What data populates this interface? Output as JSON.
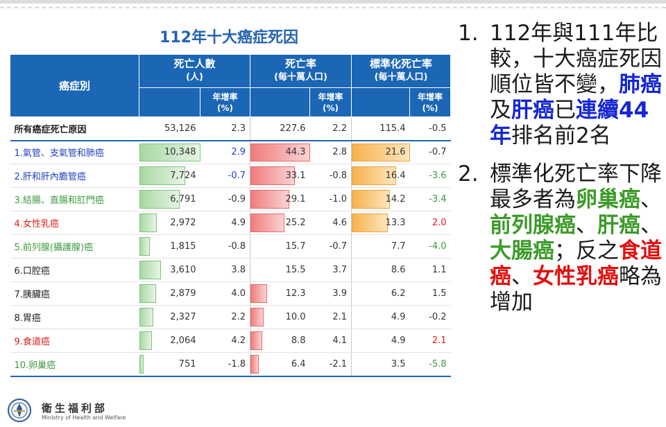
{
  "title": "112年十大癌症死因",
  "colors": {
    "header_bg": "#1b66b5",
    "green_bar": "#a8d8a3",
    "red_bar": "#f07c7c",
    "orange_bar": "#f6b24c"
  },
  "table": {
    "headers": {
      "category": "癌症別",
      "deaths": "死亡人數",
      "deaths_unit": "(人)",
      "rate": "死亡率",
      "rate_unit": "(每十萬人口)",
      "std_rate": "標準化死亡率",
      "std_rate_unit": "(每十萬人口)",
      "growth": "年增率",
      "growth_unit": "(%)"
    },
    "total_row": {
      "name": "所有癌症死亡原因",
      "deaths": "53,126",
      "deaths_g": "2.3",
      "rate": "227.6",
      "rate_g": "2.2",
      "std": "115.4",
      "std_g": "-0.5"
    },
    "rows": [
      {
        "name": "1.氣管、支氣管和肺癌",
        "deaths": "10,348",
        "deaths_g": "2.9",
        "rate": "44.3",
        "rate_g": "2.8",
        "std": "21.6",
        "std_g": "-0.7",
        "deaths_n": 10348,
        "rate_n": 44.3,
        "std_n": 21.6
      },
      {
        "name": "2.肝和肝內膽管癌",
        "deaths": "7,724",
        "deaths_g": "-0.7",
        "rate": "33.1",
        "rate_g": "-0.8",
        "std": "16.4",
        "std_g": "-3.6",
        "deaths_n": 7724,
        "rate_n": 33.1,
        "std_n": 16.4
      },
      {
        "name": "3.結腸、直腸和肛門癌",
        "deaths": "6,791",
        "deaths_g": "-0.9",
        "rate": "29.1",
        "rate_g": "-1.0",
        "std": "14.2",
        "std_g": "-3.4",
        "deaths_n": 6791,
        "rate_n": 29.1,
        "std_n": 14.2
      },
      {
        "name": "4.女性乳癌",
        "deaths": "2,972",
        "deaths_g": "4.9",
        "rate": "25.2",
        "rate_g": "4.6",
        "std": "13.3",
        "std_g": "2.0",
        "deaths_n": 2972,
        "rate_n": 25.2,
        "std_n": 13.3
      },
      {
        "name": "5.前列腺(攝護腺)癌",
        "deaths": "1,815",
        "deaths_g": "-0.8",
        "rate": "15.7",
        "rate_g": "-0.7",
        "std": "7.7",
        "std_g": "-4.0",
        "deaths_n": 1815,
        "rate_n": 15.7,
        "std_n": 7.7
      },
      {
        "name": "6.口腔癌",
        "deaths": "3,610",
        "deaths_g": "3.8",
        "rate": "15.5",
        "rate_g": "3.7",
        "std": "8.6",
        "std_g": "1.1",
        "deaths_n": 3610,
        "rate_n": 15.5,
        "std_n": 8.6
      },
      {
        "name": "7.胰臟癌",
        "deaths": "2,879",
        "deaths_g": "4.0",
        "rate": "12.3",
        "rate_g": "3.9",
        "std": "6.2",
        "std_g": "1.5",
        "deaths_n": 2879,
        "rate_n": 12.3,
        "std_n": 6.2
      },
      {
        "name": "8.胃癌",
        "deaths": "2,327",
        "deaths_g": "2.2",
        "rate": "10.0",
        "rate_g": "2.1",
        "std": "4.9",
        "std_g": "-0.2",
        "deaths_n": 2327,
        "rate_n": 10.0,
        "std_n": 4.9
      },
      {
        "name": "9.食道癌",
        "deaths": "2,064",
        "deaths_g": "4.2",
        "rate": "8.8",
        "rate_g": "4.1",
        "std": "4.9",
        "std_g": "2.1",
        "deaths_n": 2064,
        "rate_n": 8.8,
        "std_n": 4.9
      },
      {
        "name": "10.卵巢癌",
        "deaths": "751",
        "deaths_g": "-1.8",
        "rate": "6.4",
        "rate_g": "-2.1",
        "std": "3.5",
        "std_g": "-5.8",
        "deaths_n": 751,
        "rate_n": 6.4,
        "std_n": 3.5
      }
    ]
  },
  "notes": [
    {
      "index": "1.",
      "parts": [
        "112年與111年比較，十大癌症死因順位皆不變，",
        "肺癌",
        "及",
        "肝癌",
        "已",
        "連續44年",
        "排名前2名"
      ]
    },
    {
      "index": "2.",
      "parts": [
        "標準化死亡率下降最多者為",
        "卵巢癌",
        "、",
        "前列腺癌",
        "、",
        "肝癌",
        "、",
        "大腸癌",
        "；反之",
        "食道癌",
        "、",
        "女性乳癌",
        "略為增加"
      ]
    }
  ],
  "ministry": {
    "zh": "衛生福利部",
    "en": "Ministry of Health and Welfare"
  }
}
